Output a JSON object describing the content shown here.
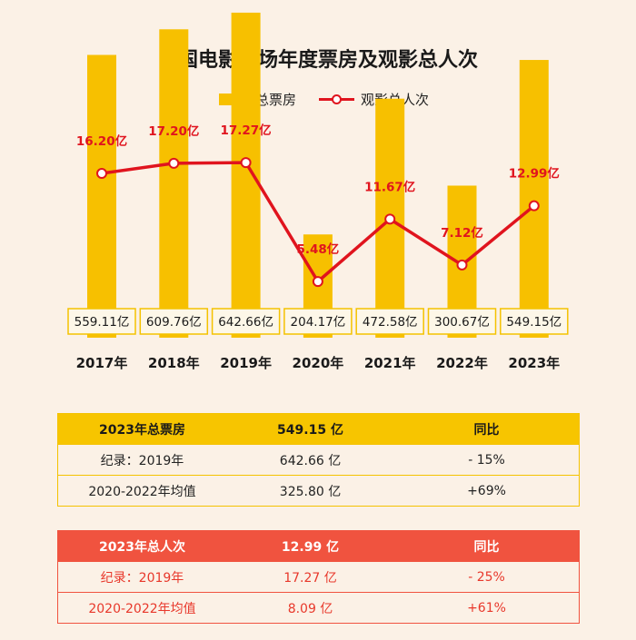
{
  "chart_data": {
    "type": "bar",
    "title": "中国电影市场年度票房及观影总人次",
    "legend": {
      "position": "top-center",
      "items": [
        "总票房",
        "观影总人次"
      ]
    },
    "categories": [
      "2017年",
      "2018年",
      "2019年",
      "2020年",
      "2021年",
      "2022年",
      "2023年"
    ],
    "series": [
      {
        "name": "总票房",
        "kind": "bar",
        "unit": "亿",
        "values": [
          559.11,
          609.76,
          642.66,
          204.17,
          472.58,
          300.67,
          549.15
        ],
        "labels": [
          "559.11亿",
          "609.76亿",
          "642.66亿",
          "204.17亿",
          "472.58亿",
          "300.67亿",
          "549.15亿"
        ]
      },
      {
        "name": "观影总人次",
        "kind": "line",
        "unit": "亿",
        "values": [
          16.2,
          17.2,
          17.27,
          5.48,
          11.67,
          7.12,
          12.99
        ],
        "labels": [
          "16.20亿",
          "17.20亿",
          "17.27亿",
          "5.48亿",
          "11.67亿",
          "7.12亿",
          "12.99亿"
        ]
      }
    ]
  },
  "colors": {
    "bar": "#f7c000",
    "line": "#e0141e",
    "label": "#e0141e",
    "background": "#fbf1e6"
  },
  "box_office_table": {
    "header": [
      "2023年总票房",
      "549.15 亿",
      "同比"
    ],
    "rows": [
      [
        "纪录：2019年",
        "642.66 亿",
        "- 15%"
      ],
      [
        "2020-2022年均值",
        "325.80 亿",
        "+69%"
      ]
    ]
  },
  "admissions_table": {
    "header": [
      "2023年总人次",
      "12.99 亿",
      "同比"
    ],
    "rows": [
      [
        "纪录：2019年",
        "17.27 亿",
        "- 25%"
      ],
      [
        "2020-2022年均值",
        "8.09 亿",
        "+61%"
      ]
    ]
  }
}
